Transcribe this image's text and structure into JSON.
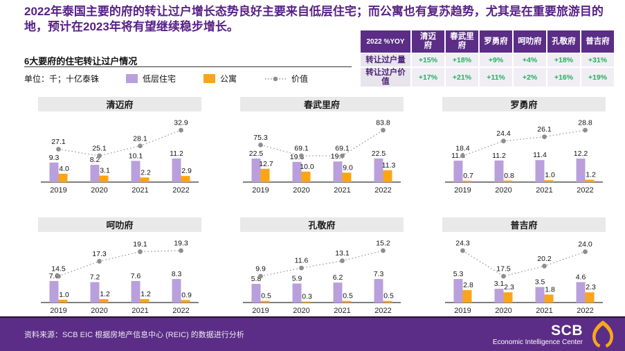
{
  "page": {
    "headline": "2022年泰国主要的府的转让过户增长态势良好主要来自低层住宅；而公寓也有复苏趋势，尤其是在重要旅游目的地，预计在2023年将有望继续稳步增长。"
  },
  "section": {
    "heading": "6大要府的住宅转让过户情况",
    "unit": "单位：千；十亿泰铢"
  },
  "legend": {
    "items": [
      {
        "key": "lowrise",
        "label": "低层住宅",
        "swatch": "square",
        "color": "#B9A0DC"
      },
      {
        "key": "condo",
        "label": "公寓",
        "swatch": "square",
        "color": "#FAA519"
      },
      {
        "key": "value",
        "label": "价值",
        "swatch": "dotted-line",
        "color": "#8E8E8E"
      }
    ]
  },
  "yoy_table": {
    "corner": "2022 %YOY",
    "columns": [
      "清迈\n府",
      "春武里\n府",
      "罗勇府",
      "呵叻府",
      "孔敬府",
      "普吉府"
    ],
    "rows": [
      {
        "label": "转让过户量",
        "values": [
          "+15%",
          "+18%",
          "+9%",
          "+4%",
          "+18%",
          "+31%"
        ]
      },
      {
        "label": "转让过户价值",
        "values": [
          "+17%",
          "+21%",
          "+11%",
          "+2%",
          "+16%",
          "+19%"
        ]
      }
    ]
  },
  "chart_data": [
    {
      "type": "bar+line",
      "title": "清迈府",
      "categories": [
        "2019",
        "2020",
        "2021",
        "2022"
      ],
      "series": [
        {
          "name": "低层住宅",
          "values": [
            9.3,
            8.2,
            10.1,
            11.2
          ]
        },
        {
          "name": "公寓",
          "values": [
            4.0,
            3.1,
            2.2,
            2.9
          ]
        },
        {
          "name": "价值",
          "values": [
            27.1,
            25.1,
            28.1,
            32.9
          ]
        }
      ]
    },
    {
      "type": "bar+line",
      "title": "春武里府",
      "categories": [
        "2019",
        "2020",
        "2021",
        "2022"
      ],
      "series": [
        {
          "name": "低层住宅",
          "values": [
            22.5,
            19.3,
            19.7,
            22.5
          ]
        },
        {
          "name": "公寓",
          "values": [
            12.7,
            10.0,
            9.0,
            11.3
          ]
        },
        {
          "name": "价值",
          "values": [
            75.3,
            69.1,
            69.1,
            83.8
          ]
        }
      ]
    },
    {
      "type": "bar+line",
      "title": "罗勇府",
      "categories": [
        "2019",
        "2020",
        "2021",
        "2022"
      ],
      "series": [
        {
          "name": "低层住宅",
          "values": [
            11.1,
            11.2,
            11.4,
            12.2
          ]
        },
        {
          "name": "公寓",
          "values": [
            0.7,
            0.8,
            1.0,
            1.2
          ]
        },
        {
          "name": "价值",
          "values": [
            18.4,
            24.4,
            26.1,
            28.8
          ]
        }
      ]
    },
    {
      "type": "bar+line",
      "title": "呵叻府",
      "categories": [
        "2019",
        "2020",
        "2021",
        "2022"
      ],
      "series": [
        {
          "name": "低层住宅",
          "values": [
            7.6,
            7.2,
            7.6,
            8.3
          ]
        },
        {
          "name": "公寓",
          "values": [
            1.0,
            1.2,
            1.2,
            0.9
          ]
        },
        {
          "name": "价值",
          "values": [
            14.5,
            17.3,
            19.1,
            19.3
          ]
        }
      ]
    },
    {
      "type": "bar+line",
      "title": "孔敬府",
      "categories": [
        "2019",
        "2020",
        "2021",
        "2022"
      ],
      "series": [
        {
          "name": "低层住宅",
          "values": [
            5.8,
            5.9,
            6.2,
            7.3
          ]
        },
        {
          "name": "公寓",
          "values": [
            0.5,
            0.3,
            0.5,
            0.5
          ]
        },
        {
          "name": "价值",
          "values": [
            9.9,
            11.6,
            13.1,
            15.2
          ]
        }
      ]
    },
    {
      "type": "bar+line",
      "title": "普吉府",
      "categories": [
        "2019",
        "2020",
        "2021",
        "2022"
      ],
      "series": [
        {
          "name": "低层住宅",
          "values": [
            5.3,
            3.1,
            3.5,
            4.6
          ]
        },
        {
          "name": "公寓",
          "values": [
            2.8,
            2.3,
            1.8,
            2.3
          ]
        },
        {
          "name": "价值",
          "values": [
            24.3,
            17.5,
            20.2,
            24.0
          ]
        }
      ]
    }
  ],
  "footer": {
    "source": "资料来源：SCB EIC 根据房地产信息中心 (REIC) 的数据进行分析",
    "brand": "SCB",
    "brand_sub": "Economic Intelligence Center"
  },
  "colors": {
    "accent_purple": "#5B2D86",
    "title_text": "#571F87",
    "bar_lowrise": "#B9A0DC",
    "bar_condo": "#FAA519",
    "value_line": "#8E8E8E",
    "yoy_green": "#27AE60",
    "chart_title_bg": "#E9E9E9"
  }
}
